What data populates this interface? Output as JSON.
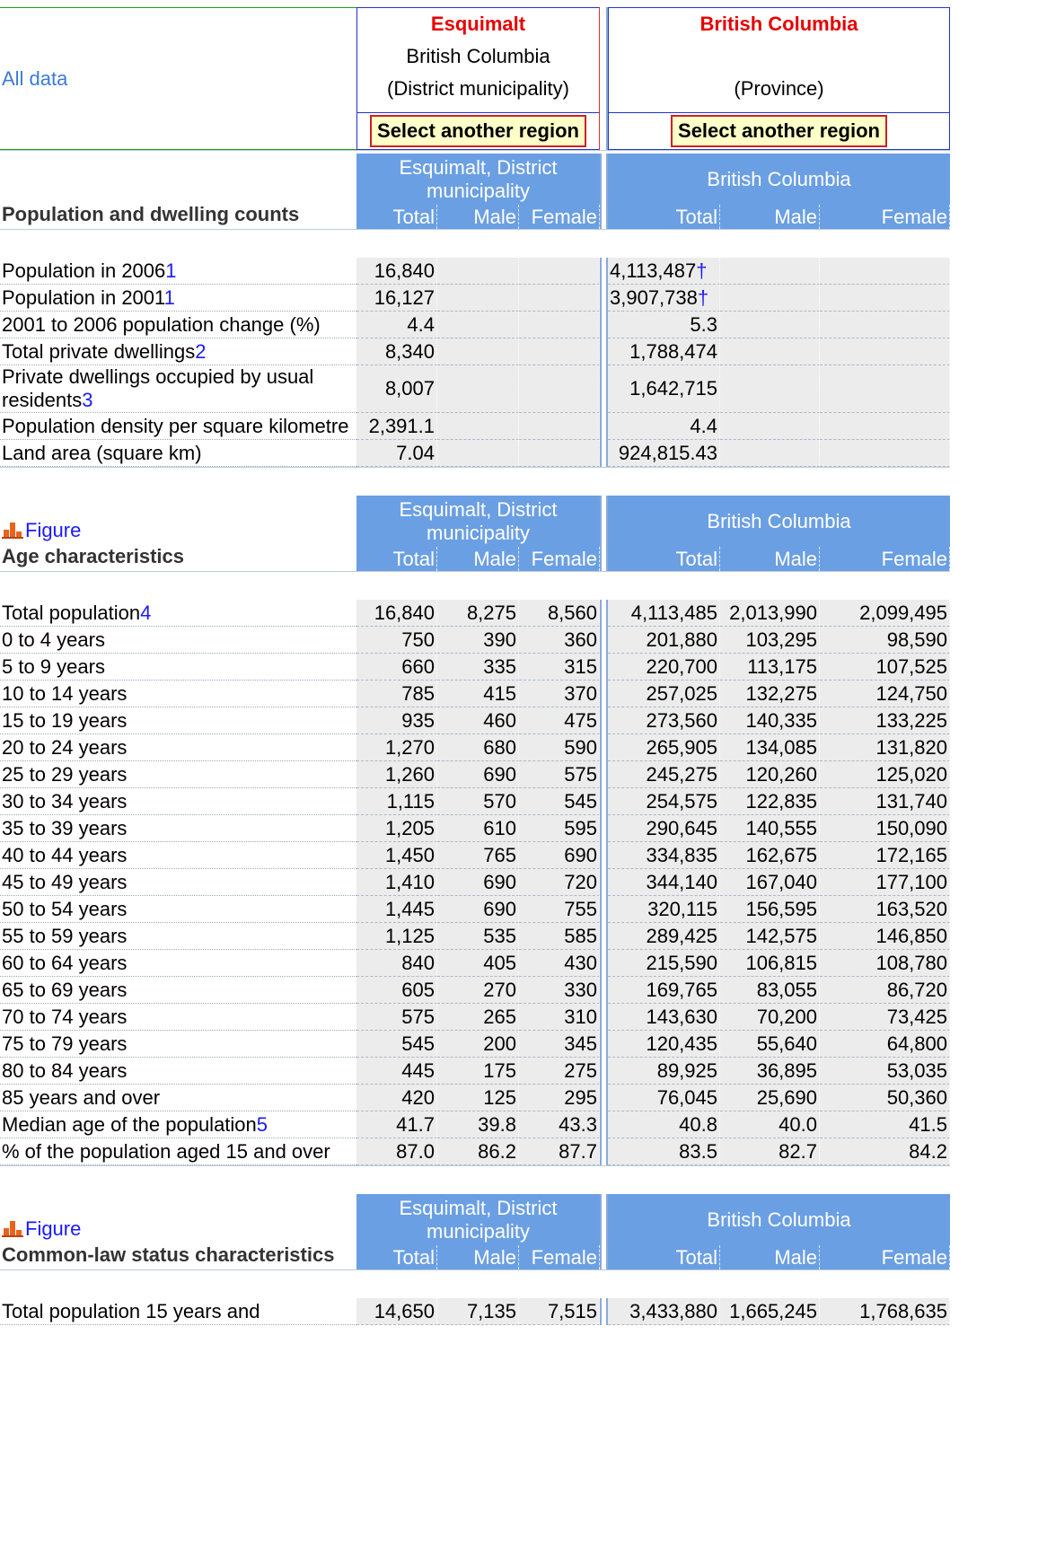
{
  "header": {
    "all_data": "All data",
    "regions": [
      {
        "name": "Esquimalt",
        "province": "British Columbia",
        "kind": "(District municipality)",
        "button": "Select another region"
      },
      {
        "name": "British Columbia",
        "kind": "(Province)",
        "button": "Select another region"
      }
    ]
  },
  "sections": [
    {
      "title": "Population and dwelling counts",
      "groups": [
        "Esquimalt, District municipality",
        "British Columbia"
      ],
      "columns": [
        "Total",
        "Male",
        "Female",
        "Total",
        "Male",
        "Female"
      ],
      "rows": [
        {
          "label": "Population in 2006",
          "note": "1",
          "values": [
            "16,840",
            null,
            null,
            "4,113,487",
            null,
            null
          ],
          "flag": "†"
        },
        {
          "label": "Population in 2001",
          "note": "1",
          "values": [
            "16,127",
            null,
            null,
            "3,907,738",
            null,
            null
          ],
          "flag": "†"
        },
        {
          "label": "2001 to 2006 population change (%)",
          "values": [
            "4.4",
            null,
            null,
            "5.3",
            null,
            null
          ]
        },
        {
          "label": "Total private dwellings",
          "note": "2",
          "values": [
            "8,340",
            null,
            null,
            "1,788,474",
            null,
            null
          ]
        },
        {
          "label": "Private dwellings occupied by usual residents",
          "note": "3",
          "values": [
            "8,007",
            null,
            null,
            "1,642,715",
            null,
            null
          ]
        },
        {
          "label": "Population density per square kilometre",
          "values": [
            "2,391.1",
            null,
            null,
            "4.4",
            null,
            null
          ]
        },
        {
          "label": "Land area (square km)",
          "values": [
            "7.04",
            null,
            null,
            "924,815.43",
            null,
            null
          ]
        }
      ]
    },
    {
      "figure": "Figure",
      "title": "Age characteristics",
      "groups": [
        "Esquimalt, District municipality",
        "British Columbia"
      ],
      "columns": [
        "Total",
        "Male",
        "Female",
        "Total",
        "Male",
        "Female"
      ],
      "rows": [
        {
          "label": "Total population",
          "note": "4",
          "values": [
            "16,840",
            "8,275",
            "8,560",
            "4,113,485",
            "2,013,990",
            "2,099,495"
          ]
        },
        {
          "label": "0 to 4 years",
          "values": [
            "750",
            "390",
            "360",
            "201,880",
            "103,295",
            "98,590"
          ]
        },
        {
          "label": "5 to 9 years",
          "values": [
            "660",
            "335",
            "315",
            "220,700",
            "113,175",
            "107,525"
          ]
        },
        {
          "label": "10 to 14 years",
          "values": [
            "785",
            "415",
            "370",
            "257,025",
            "132,275",
            "124,750"
          ]
        },
        {
          "label": "15 to 19 years",
          "values": [
            "935",
            "460",
            "475",
            "273,560",
            "140,335",
            "133,225"
          ]
        },
        {
          "label": "20 to 24 years",
          "values": [
            "1,270",
            "680",
            "590",
            "265,905",
            "134,085",
            "131,820"
          ]
        },
        {
          "label": "25 to 29 years",
          "values": [
            "1,260",
            "690",
            "575",
            "245,275",
            "120,260",
            "125,020"
          ]
        },
        {
          "label": "30 to 34 years",
          "values": [
            "1,115",
            "570",
            "545",
            "254,575",
            "122,835",
            "131,740"
          ]
        },
        {
          "label": "35 to 39 years",
          "values": [
            "1,205",
            "610",
            "595",
            "290,645",
            "140,555",
            "150,090"
          ]
        },
        {
          "label": "40 to 44 years",
          "values": [
            "1,450",
            "765",
            "690",
            "334,835",
            "162,675",
            "172,165"
          ]
        },
        {
          "label": "45 to 49 years",
          "values": [
            "1,410",
            "690",
            "720",
            "344,140",
            "167,040",
            "177,100"
          ]
        },
        {
          "label": "50 to 54 years",
          "values": [
            "1,445",
            "690",
            "755",
            "320,115",
            "156,595",
            "163,520"
          ]
        },
        {
          "label": "55 to 59 years",
          "values": [
            "1,125",
            "535",
            "585",
            "289,425",
            "142,575",
            "146,850"
          ]
        },
        {
          "label": "60 to 64 years",
          "values": [
            "840",
            "405",
            "430",
            "215,590",
            "106,815",
            "108,780"
          ]
        },
        {
          "label": "65 to 69 years",
          "values": [
            "605",
            "270",
            "330",
            "169,765",
            "83,055",
            "86,720"
          ]
        },
        {
          "label": "70 to 74 years",
          "values": [
            "575",
            "265",
            "310",
            "143,630",
            "70,200",
            "73,425"
          ]
        },
        {
          "label": "75 to 79 years",
          "values": [
            "545",
            "200",
            "345",
            "120,435",
            "55,640",
            "64,800"
          ]
        },
        {
          "label": "80 to 84 years",
          "values": [
            "445",
            "175",
            "275",
            "89,925",
            "36,895",
            "53,035"
          ]
        },
        {
          "label": "85 years and over",
          "values": [
            "420",
            "125",
            "295",
            "76,045",
            "25,690",
            "50,360"
          ]
        },
        {
          "label": "Median age of the population",
          "note": "5",
          "values": [
            "41.7",
            "39.8",
            "43.3",
            "40.8",
            "40.0",
            "41.5"
          ]
        },
        {
          "label": "% of the population aged 15 and over",
          "values": [
            "87.0",
            "86.2",
            "87.7",
            "83.5",
            "82.7",
            "84.2"
          ]
        }
      ]
    },
    {
      "figure": "Figure",
      "title": "Common-law status characteristics",
      "groups": [
        "Esquimalt, District municipality",
        "British Columbia"
      ],
      "columns": [
        "Total",
        "Male",
        "Female",
        "Total",
        "Male",
        "Female"
      ],
      "rows": [
        {
          "label": "Total population 15 years and",
          "values": [
            "14,650",
            "7,135",
            "7,515",
            "3,433,880",
            "1,665,245",
            "1,768,635"
          ]
        }
      ]
    }
  ]
}
